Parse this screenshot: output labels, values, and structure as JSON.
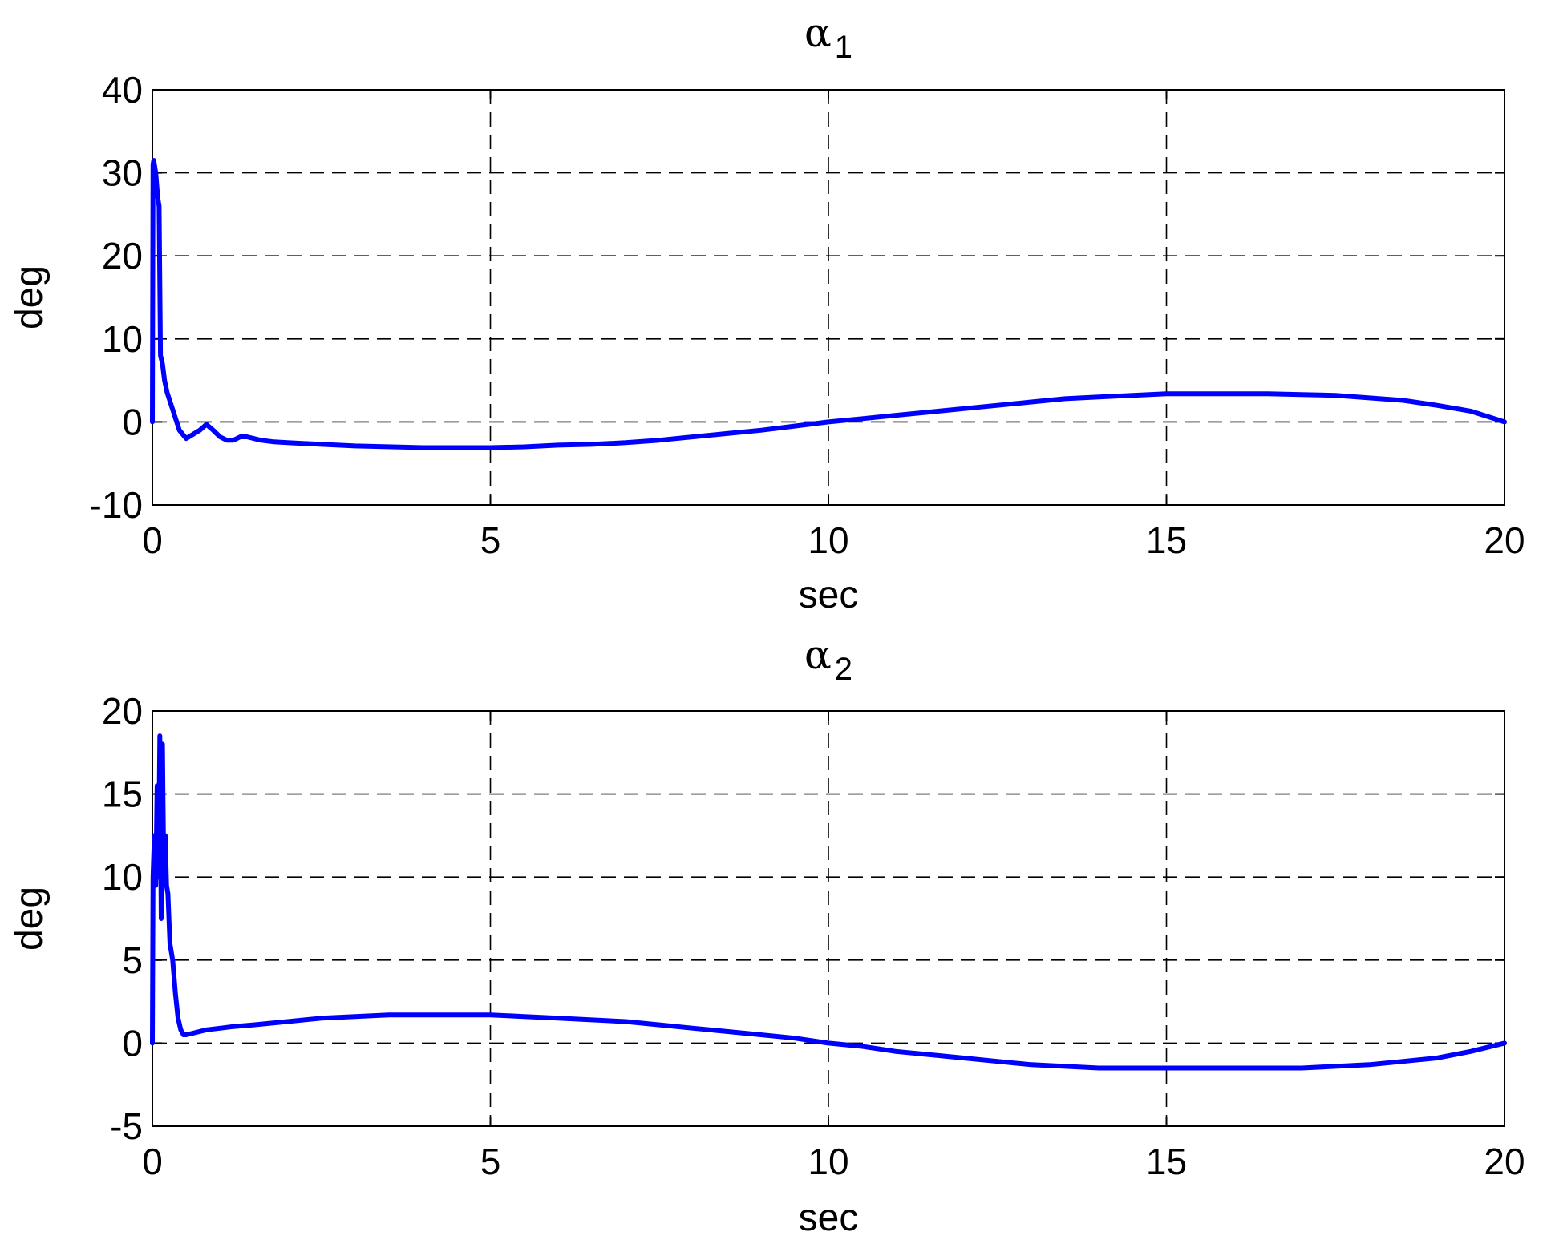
{
  "chart_data": [
    {
      "type": "line",
      "title": "α",
      "title_subscript": "1",
      "xlabel": "sec",
      "ylabel": "deg",
      "xlim": [
        0,
        20
      ],
      "ylim": [
        -10,
        40
      ],
      "xticks": [
        0,
        5,
        10,
        15,
        20
      ],
      "yticks": [
        -10,
        0,
        10,
        20,
        30,
        40
      ],
      "xtick_labels": [
        "0",
        "5",
        "10",
        "15",
        "20"
      ],
      "ytick_labels": [
        "-10",
        "0",
        "10",
        "20",
        "30",
        "40"
      ],
      "grid": true,
      "color": "#0000ff",
      "x": [
        0,
        0.01,
        0.02,
        0.05,
        0.08,
        0.1,
        0.12,
        0.15,
        0.18,
        0.22,
        0.3,
        0.4,
        0.5,
        0.6,
        0.7,
        0.8,
        0.9,
        1.0,
        1.1,
        1.2,
        1.3,
        1.4,
        1.6,
        1.8,
        2.0,
        2.5,
        3.0,
        4.0,
        5.0,
        5.5,
        6.0,
        6.5,
        7.0,
        7.5,
        8.0,
        8.5,
        9.0,
        9.5,
        10.0,
        10.5,
        11.0,
        11.5,
        12.0,
        12.5,
        13.0,
        13.5,
        14.0,
        14.5,
        15.0,
        15.5,
        16.0,
        16.5,
        17.0,
        17.5,
        18.0,
        18.5,
        19.0,
        19.5,
        20.0
      ],
      "values": [
        0,
        31.0,
        31.5,
        30.0,
        27.0,
        26.0,
        8.0,
        7.0,
        5.0,
        3.5,
        1.5,
        -1.0,
        -2.0,
        -1.5,
        -1.0,
        -0.3,
        -1.0,
        -1.8,
        -2.2,
        -2.2,
        -1.8,
        -1.8,
        -2.2,
        -2.4,
        -2.5,
        -2.7,
        -2.9,
        -3.1,
        -3.1,
        -3.0,
        -2.8,
        -2.7,
        -2.5,
        -2.2,
        -1.8,
        -1.4,
        -1.0,
        -0.5,
        0.0,
        0.4,
        0.8,
        1.2,
        1.6,
        2.0,
        2.4,
        2.8,
        3.0,
        3.2,
        3.4,
        3.4,
        3.4,
        3.4,
        3.3,
        3.2,
        2.9,
        2.6,
        2.0,
        1.3,
        0.0
      ]
    },
    {
      "type": "line",
      "title": "α",
      "title_subscript": "2",
      "xlabel": "sec",
      "ylabel": "deg",
      "xlim": [
        0,
        20
      ],
      "ylim": [
        -5,
        20
      ],
      "xticks": [
        0,
        5,
        10,
        15,
        20
      ],
      "yticks": [
        -5,
        0,
        5,
        10,
        15,
        20
      ],
      "xtick_labels": [
        "0",
        "5",
        "10",
        "15",
        "20"
      ],
      "ytick_labels": [
        "-5",
        "0",
        "5",
        "10",
        "15",
        "20"
      ],
      "grid": true,
      "color": "#0000ff",
      "x": [
        0,
        0.01,
        0.03,
        0.05,
        0.07,
        0.09,
        0.11,
        0.13,
        0.15,
        0.17,
        0.19,
        0.21,
        0.23,
        0.26,
        0.3,
        0.34,
        0.38,
        0.42,
        0.46,
        0.5,
        0.6,
        0.8,
        1.0,
        1.2,
        1.5,
        2.0,
        2.5,
        3.0,
        3.5,
        4.0,
        5.0,
        5.5,
        6.0,
        6.5,
        7.0,
        7.5,
        8.0,
        8.5,
        9.0,
        9.5,
        10.0,
        10.5,
        11.0,
        11.5,
        12.0,
        12.5,
        13.0,
        13.5,
        14.0,
        14.5,
        15.0,
        15.5,
        16.0,
        16.5,
        17.0,
        17.5,
        18.0,
        18.5,
        19.0,
        19.5,
        20.0
      ],
      "values": [
        0,
        10.0,
        12.5,
        9.5,
        15.5,
        10.0,
        18.5,
        7.5,
        18.0,
        10.0,
        12.5,
        9.5,
        9.0,
        6.0,
        5.0,
        3.0,
        1.5,
        0.8,
        0.5,
        0.5,
        0.6,
        0.8,
        0.9,
        1.0,
        1.1,
        1.3,
        1.5,
        1.6,
        1.7,
        1.7,
        1.7,
        1.6,
        1.5,
        1.4,
        1.3,
        1.1,
        0.9,
        0.7,
        0.5,
        0.3,
        0.0,
        -0.2,
        -0.5,
        -0.7,
        -0.9,
        -1.1,
        -1.3,
        -1.4,
        -1.5,
        -1.5,
        -1.5,
        -1.5,
        -1.5,
        -1.5,
        -1.5,
        -1.4,
        -1.3,
        -1.1,
        -0.9,
        -0.5,
        0.0
      ]
    }
  ]
}
